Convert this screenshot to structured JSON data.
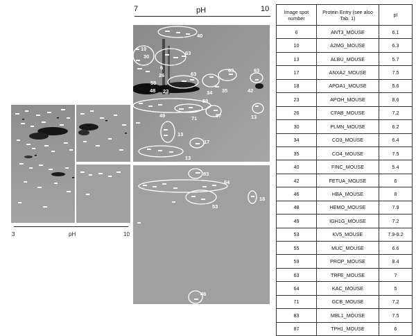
{
  "overview": {
    "x_start": "3",
    "x_end": "10",
    "x_label": "pH"
  },
  "zoom": {
    "x_start": "7",
    "x_end": "10",
    "x_label": "pH",
    "upper_spot_labels": [
      "40",
      "10",
      "30",
      "63",
      "6",
      "26",
      "63",
      "63",
      "63",
      "55",
      "48",
      "23",
      "34",
      "35",
      "42",
      "59",
      "49",
      "71",
      "87",
      "13",
      "13",
      "17",
      "13"
    ],
    "lower_spot_labels": [
      "83",
      "64",
      "18",
      "53",
      "46"
    ]
  },
  "table": {
    "headers": {
      "spot": "Image spot number",
      "protein": "Protein Entry (see also Tab. 1)",
      "pi": "pI"
    },
    "rows": [
      {
        "spot": "6",
        "protein": "ANT3_MOUSE",
        "pi": "6.1"
      },
      {
        "spot": "10",
        "protein": "A2MG_MOUSE",
        "pi": "6.3"
      },
      {
        "spot": "13",
        "protein": "ALBU_MOUSE",
        "pi": "5.7"
      },
      {
        "spot": "17",
        "protein": "ANXA2_MOUSE",
        "pi": "7.5"
      },
      {
        "spot": "18",
        "protein": "APOA1_MOUSE",
        "pi": "5.6"
      },
      {
        "spot": "23",
        "protein": "APOH_MOUSE",
        "pi": "8.6"
      },
      {
        "spot": "26",
        "protein": "CFAB_MOUSE",
        "pi": "7.2"
      },
      {
        "spot": "30",
        "protein": "PLMN_MOUSE",
        "pi": "6.2"
      },
      {
        "spot": "34",
        "protein": "CO3_MOUSE",
        "pi": "6.4"
      },
      {
        "spot": "35",
        "protein": "CO4_MOUSE",
        "pi": "7.5"
      },
      {
        "spot": "40",
        "protein": "FINC_MOUSE",
        "pi": "5.4"
      },
      {
        "spot": "42",
        "protein": "FETUA_MOUSE",
        "pi": "6"
      },
      {
        "spot": "46",
        "protein": "HBA_MOUSE",
        "pi": "8"
      },
      {
        "spot": "48",
        "protein": "HEMO_MOUSE",
        "pi": "7.9"
      },
      {
        "spot": "49",
        "protein": "IGH1G_MOUSE",
        "pi": "7.2"
      },
      {
        "spot": "53",
        "protein": "KV5_MOUSE",
        "pi": "7.9-9.2"
      },
      {
        "spot": "55",
        "protein": "MUC_MOUSE",
        "pi": "6.6"
      },
      {
        "spot": "59",
        "protein": "PROP_MOUSE",
        "pi": "8.4"
      },
      {
        "spot": "63",
        "protein": "TRFE_MOUSE",
        "pi": "7"
      },
      {
        "spot": "64",
        "protein": "KAC_MOUSE",
        "pi": "5"
      },
      {
        "spot": "71",
        "protein": "GCB_MOUSE",
        "pi": "7.2"
      },
      {
        "spot": "83",
        "protein": "MBL1_MOUSE",
        "pi": "7.5"
      },
      {
        "spot": "87",
        "protein": "TPH1_MOUSE",
        "pi": "6"
      }
    ]
  }
}
